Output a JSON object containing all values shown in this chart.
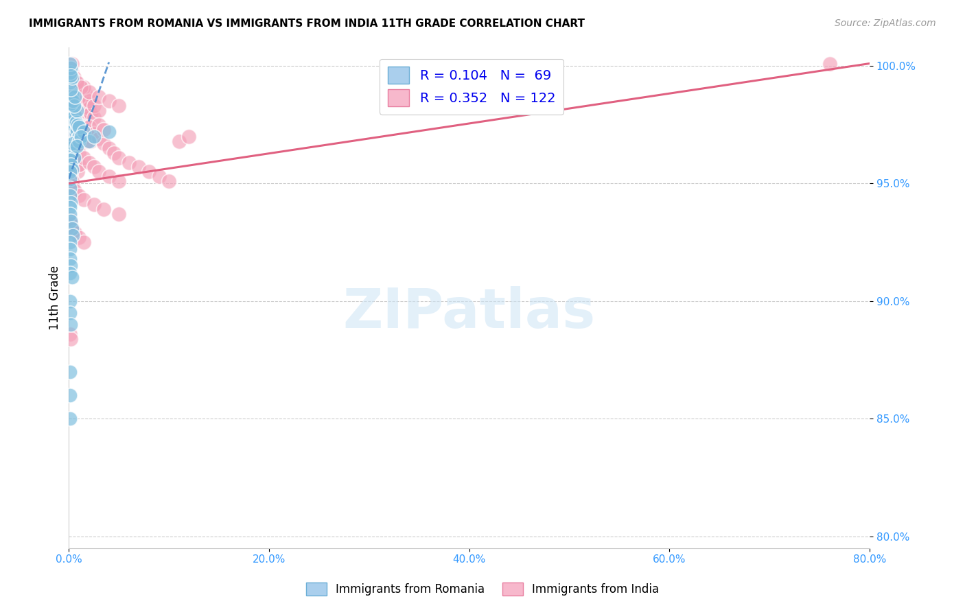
{
  "title": "IMMIGRANTS FROM ROMANIA VS IMMIGRANTS FROM INDIA 11TH GRADE CORRELATION CHART",
  "source": "Source: ZipAtlas.com",
  "ylabel": "11th Grade",
  "xlim": [
    0.0,
    0.8
  ],
  "ylim": [
    0.795,
    1.008
  ],
  "romania_color": "#7fbfdf",
  "india_color": "#f4a0b8",
  "romania_line_color": "#4488cc",
  "india_line_color": "#e06080",
  "watermark_text": "ZIPatlas",
  "background_color": "#ffffff",
  "grid_color": "#cccccc",
  "ytick_vals": [
    0.8,
    0.85,
    0.9,
    0.95,
    1.0
  ],
  "ytick_labels": [
    "80.0%",
    "85.0%",
    "90.0%",
    "95.0%",
    "100.0%"
  ],
  "xtick_vals": [
    0.0,
    0.2,
    0.4,
    0.6,
    0.8
  ],
  "xtick_labels": [
    "0.0%",
    "20.0%",
    "40.0%",
    "60.0%",
    "80.0%"
  ],
  "romania_x": [
    0.001,
    0.002,
    0.003,
    0.004,
    0.005,
    0.006,
    0.007,
    0.008,
    0.009,
    0.01,
    0.001,
    0.002,
    0.003,
    0.004,
    0.005,
    0.006,
    0.007,
    0.008,
    0.009,
    0.01,
    0.001,
    0.002,
    0.003,
    0.004,
    0.005,
    0.006,
    0.002,
    0.003,
    0.004,
    0.005,
    0.001,
    0.002,
    0.003,
    0.001,
    0.002,
    0.003,
    0.001,
    0.002,
    0.001,
    0.002,
    0.001,
    0.001,
    0.001,
    0.001,
    0.002,
    0.001,
    0.001,
    0.002,
    0.003,
    0.004,
    0.01,
    0.015,
    0.012,
    0.008,
    0.001,
    0.001,
    0.001,
    0.002,
    0.001,
    0.003,
    0.001,
    0.001,
    0.002,
    0.02,
    0.025,
    0.04,
    0.001,
    0.001,
    0.001
  ],
  "romania_y": [
    0.978,
    0.975,
    0.972,
    0.976,
    0.968,
    0.974,
    0.971,
    0.973,
    0.969,
    0.97,
    0.982,
    0.98,
    0.978,
    0.983,
    0.977,
    0.979,
    0.976,
    0.981,
    0.975,
    0.974,
    0.986,
    0.984,
    0.988,
    0.985,
    0.983,
    0.987,
    0.965,
    0.963,
    0.967,
    0.961,
    0.993,
    0.99,
    0.995,
    0.96,
    0.958,
    0.956,
    0.997,
    0.999,
    1.001,
    0.996,
    0.955,
    0.952,
    0.948,
    0.945,
    0.942,
    0.94,
    0.937,
    0.934,
    0.931,
    0.928,
    0.968,
    0.972,
    0.97,
    0.966,
    0.925,
    0.922,
    0.918,
    0.915,
    0.912,
    0.91,
    0.9,
    0.895,
    0.89,
    0.968,
    0.97,
    0.972,
    0.87,
    0.86,
    0.85
  ],
  "india_x": [
    0.001,
    0.002,
    0.003,
    0.004,
    0.005,
    0.006,
    0.007,
    0.008,
    0.009,
    0.01,
    0.011,
    0.012,
    0.013,
    0.014,
    0.015,
    0.016,
    0.017,
    0.018,
    0.02,
    0.022,
    0.001,
    0.002,
    0.003,
    0.004,
    0.005,
    0.006,
    0.007,
    0.008,
    0.009,
    0.01,
    0.011,
    0.012,
    0.013,
    0.014,
    0.015,
    0.016,
    0.018,
    0.02,
    0.022,
    0.025,
    0.001,
    0.002,
    0.003,
    0.004,
    0.005,
    0.006,
    0.007,
    0.008,
    0.009,
    0.01,
    0.012,
    0.015,
    0.018,
    0.02,
    0.025,
    0.03,
    0.035,
    0.04,
    0.045,
    0.05,
    0.06,
    0.07,
    0.08,
    0.09,
    0.1,
    0.11,
    0.12,
    0.001,
    0.002,
    0.003,
    0.004,
    0.005,
    0.007,
    0.01,
    0.015,
    0.02,
    0.025,
    0.03,
    0.001,
    0.002,
    0.003,
    0.005,
    0.008,
    0.012,
    0.02,
    0.03,
    0.04,
    0.05,
    0.001,
    0.002,
    0.003,
    0.004,
    0.006,
    0.01,
    0.015,
    0.025,
    0.035,
    0.05,
    0.001,
    0.002,
    0.003,
    0.006,
    0.01,
    0.015,
    0.001,
    0.002,
    0.001,
    0.002,
    0.003,
    0.004,
    0.005,
    0.007,
    0.01,
    0.015,
    0.02,
    0.025,
    0.03,
    0.04,
    0.05,
    0.03,
    0.035,
    0.76
  ],
  "india_y": [
    0.975,
    0.972,
    0.97,
    0.973,
    0.968,
    0.971,
    0.969,
    0.974,
    0.966,
    0.967,
    0.978,
    0.976,
    0.98,
    0.977,
    0.975,
    0.979,
    0.974,
    0.972,
    0.97,
    0.968,
    0.983,
    0.981,
    0.985,
    0.982,
    0.98,
    0.984,
    0.979,
    0.977,
    0.982,
    0.975,
    0.988,
    0.986,
    0.99,
    0.987,
    0.985,
    0.989,
    0.984,
    0.982,
    0.98,
    0.978,
    0.965,
    0.963,
    0.967,
    0.961,
    0.959,
    0.962,
    0.957,
    0.96,
    0.955,
    0.958,
    0.97,
    0.972,
    0.968,
    0.974,
    0.971,
    0.969,
    0.967,
    0.965,
    0.963,
    0.961,
    0.959,
    0.957,
    0.955,
    0.953,
    0.951,
    0.968,
    0.97,
    0.995,
    0.993,
    0.997,
    0.991,
    0.989,
    0.993,
    0.987,
    0.991,
    0.985,
    0.983,
    0.981,
    0.999,
    0.997,
    1.001,
    0.995,
    0.993,
    0.991,
    0.989,
    0.987,
    0.985,
    0.983,
    0.955,
    0.953,
    0.951,
    0.949,
    0.947,
    0.945,
    0.943,
    0.941,
    0.939,
    0.937,
    0.935,
    0.933,
    0.931,
    0.929,
    0.927,
    0.925,
    0.886,
    0.884,
    0.975,
    0.973,
    0.971,
    0.969,
    0.967,
    0.965,
    0.963,
    0.961,
    0.959,
    0.957,
    0.955,
    0.953,
    0.951,
    0.975,
    0.973,
    1.001
  ]
}
